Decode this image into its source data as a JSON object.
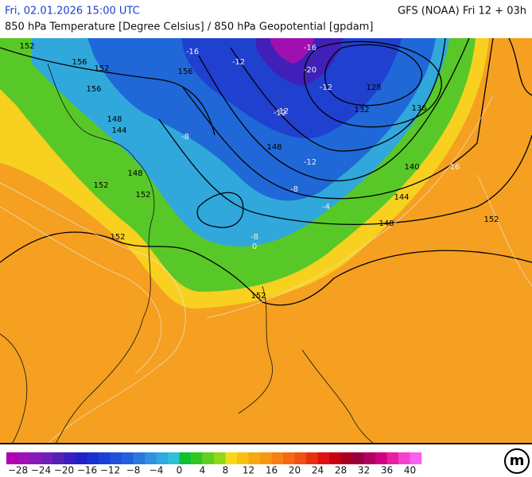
{
  "header": {
    "datetime": "Fri, 02.01.2026 15:00 UTC",
    "model": "GFS (NOAA) Fri 12 + 03h",
    "subtitle": "850 hPa Temperature [Degree Celsius] / 850 hPa Geopotential [gpdam]"
  },
  "map": {
    "geopotential_labels": [
      "152",
      "156",
      "156",
      "152",
      "156",
      "144",
      "148",
      "152",
      "152",
      "148",
      "136",
      "132",
      "128",
      "140",
      "144",
      "148",
      "152",
      "152",
      "148",
      "152"
    ],
    "temperature_labels": [
      "-16",
      "-12",
      "-8",
      "-12",
      "-8",
      "-16",
      "-12",
      "-20",
      "-12",
      "-8",
      "0",
      "-4",
      "16",
      "-12"
    ]
  },
  "colorbar": {
    "colors": [
      "#b000b0",
      "#a010b8",
      "#8a18b8",
      "#7020b8",
      "#5520b8",
      "#3a1cc0",
      "#2020c8",
      "#1830d0",
      "#1840d8",
      "#2050dc",
      "#2060e0",
      "#2878e0",
      "#3090e0",
      "#30a8e0",
      "#30c0d8",
      "#10c030",
      "#30c820",
      "#60d020",
      "#90d818",
      "#f8d818",
      "#f8c010",
      "#f8a810",
      "#f89810",
      "#f88010",
      "#f86810",
      "#f05010",
      "#e83010",
      "#e01010",
      "#c80010",
      "#a80020",
      "#980040",
      "#b00060",
      "#d00080",
      "#e820a0",
      "#f840d0",
      "#f860f0"
    ],
    "labels": [
      "−28",
      "−24",
      "−20",
      "−16",
      "−12",
      "−8",
      "−4",
      "0",
      "4",
      "8",
      "12",
      "16",
      "20",
      "24",
      "28",
      "32",
      "36",
      "40"
    ]
  },
  "logo": "m"
}
